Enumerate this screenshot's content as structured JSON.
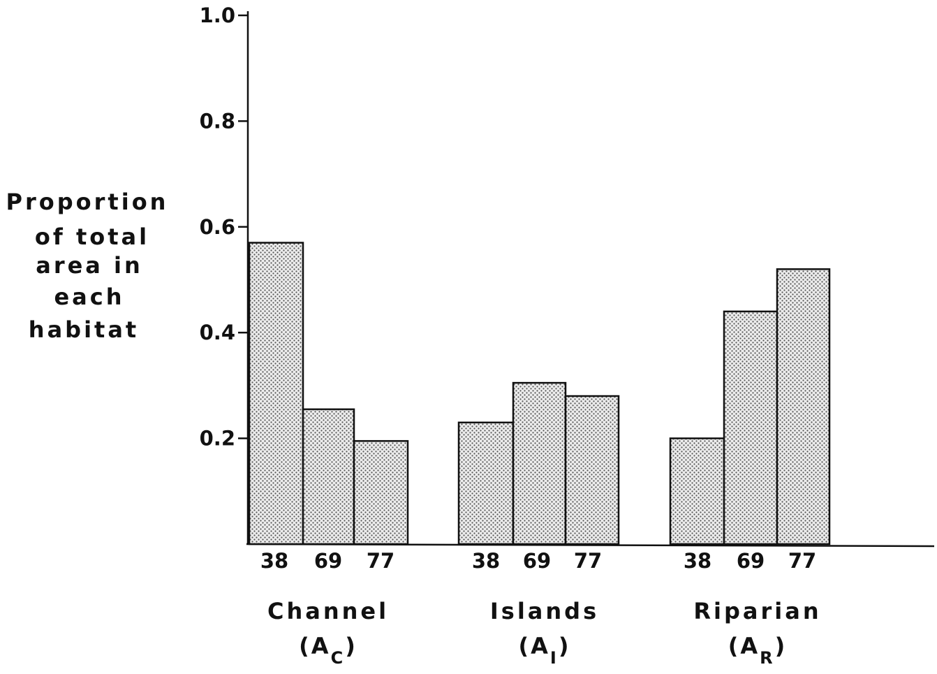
{
  "chart_data": {
    "type": "bar",
    "title": "",
    "ylabel_lines": [
      "Proportion",
      "of  total",
      "area in",
      "each",
      "habitat"
    ],
    "yticks": [
      "1.0",
      "0.8",
      "0.6",
      "0.4",
      "0.2"
    ],
    "ylim": [
      0,
      1.0
    ],
    "categories": [
      "38",
      "69",
      "77"
    ],
    "groups": [
      {
        "label": "Channel",
        "subscript_base": "(A",
        "subscript": "C",
        "subscript_close": ")",
        "values": [
          0.57,
          0.255,
          0.195
        ]
      },
      {
        "label": "Islands",
        "subscript_base": "(A",
        "subscript": "I",
        "subscript_close": ")",
        "values": [
          0.23,
          0.305,
          0.28
        ]
      },
      {
        "label": "Riparian",
        "subscript_base": "(A",
        "subscript": "R",
        "subscript_close": ")",
        "values": [
          0.2,
          0.44,
          0.52
        ]
      }
    ],
    "bar_fill": "#d4d4d4",
    "bar_stroke": "#111111",
    "grid": false,
    "legend": "none"
  }
}
